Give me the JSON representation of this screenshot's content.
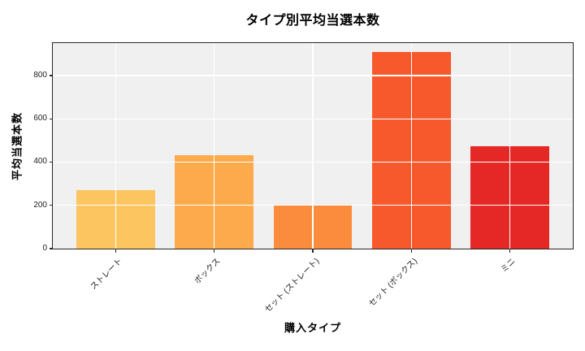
{
  "chart_data": {
    "type": "bar",
    "title": "タイプ別平均当選本数",
    "xlabel": "購入タイプ",
    "ylabel": "平均当選本数",
    "categories": [
      "ストレート",
      "ボックス",
      "セット (ストレート)",
      "セット (ボックス)",
      "ミニ"
    ],
    "values": [
      270,
      430,
      200,
      908,
      475
    ],
    "bar_colors": [
      "#fdc55f",
      "#fdaa4d",
      "#fb8c3d",
      "#f7582c",
      "#e52825"
    ],
    "ylim": [
      0,
      950
    ],
    "yticks": [
      0,
      200,
      400,
      600,
      800
    ],
    "xlim_units": [
      -0.64,
      4.64
    ],
    "bar_width_units": 0.8,
    "legend": "none",
    "grid": "on",
    "grid_color": "#ffffff",
    "plot_bg": "#f0f0f0",
    "spine_color": "#262626",
    "figure_bg": "#ffffff"
  }
}
